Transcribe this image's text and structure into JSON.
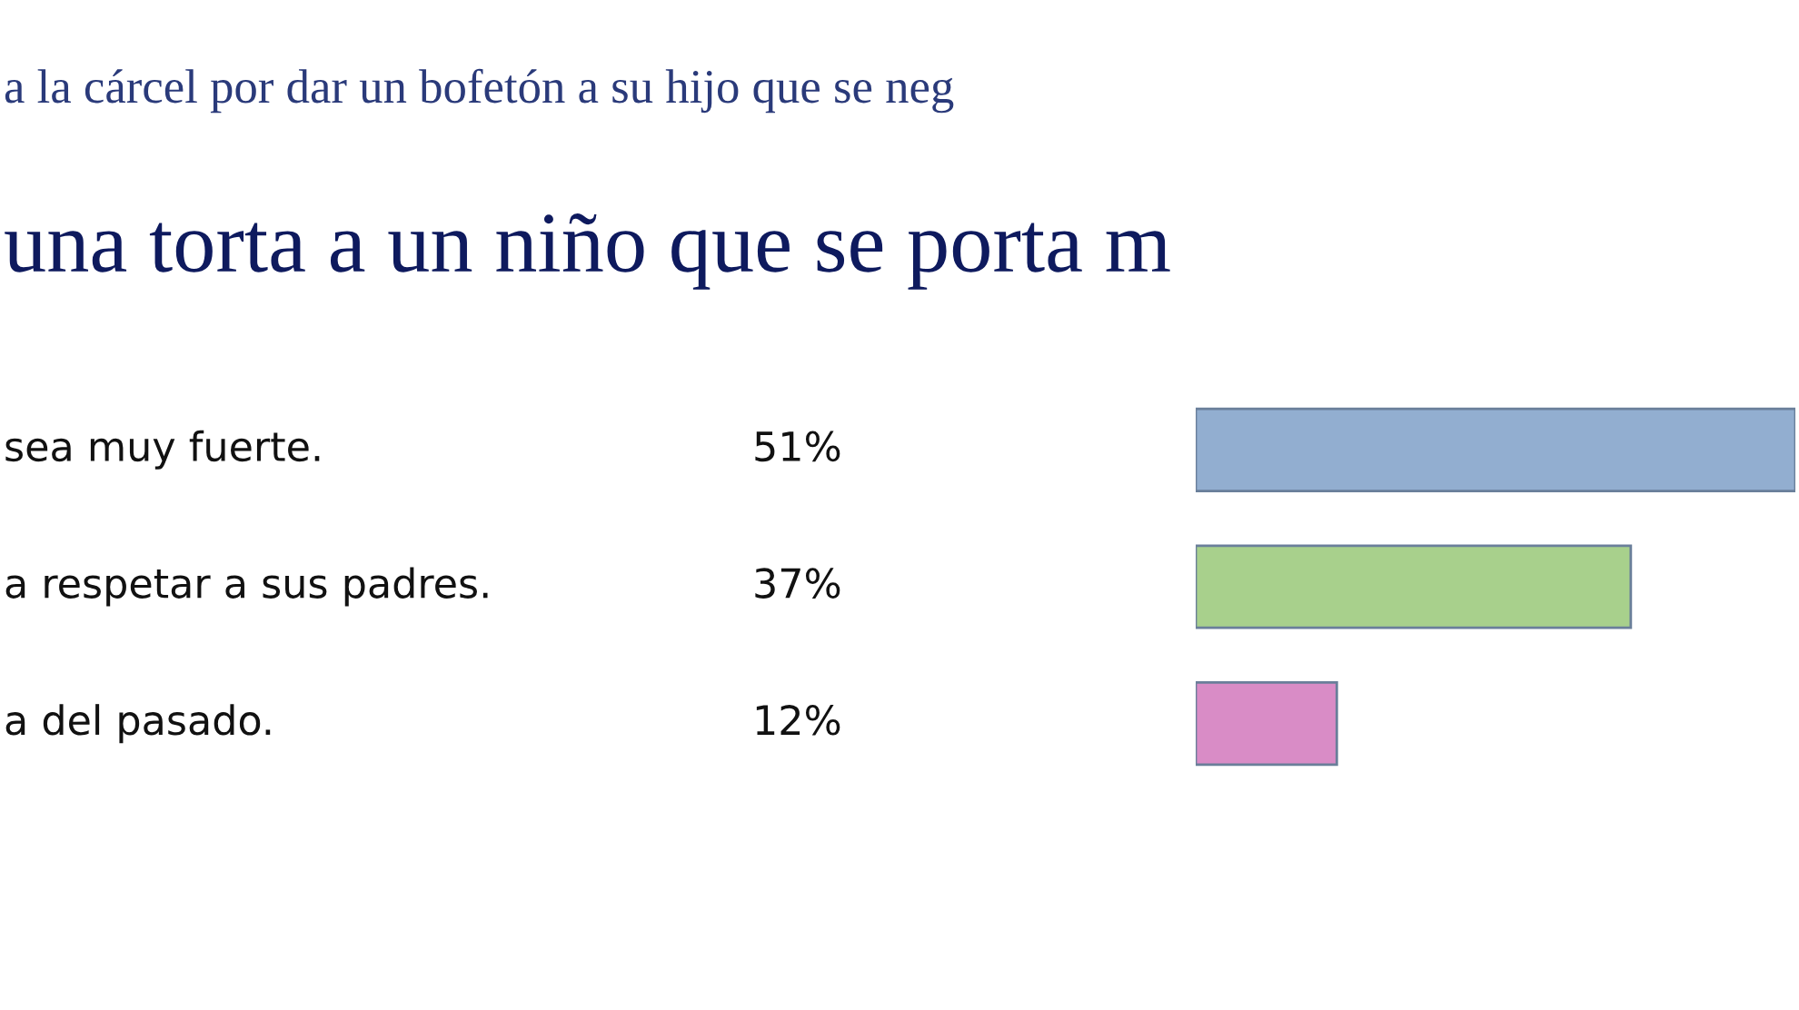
{
  "chart_data": {
    "type": "bar",
    "orientation": "horizontal",
    "subtitle": "a la cárcel por dar un bofetón a su hijo que se neg",
    "title": "una torta a un niño que se porta m",
    "categories": [
      "sea muy fuerte.",
      "a respetar a sus padres.",
      "a del pasado."
    ],
    "values": [
      51,
      37,
      12
    ],
    "value_labels": [
      "51%",
      "37%",
      "12%"
    ],
    "colors": [
      "#92aed0",
      "#a8d08c",
      "#d98cc6"
    ],
    "legend": false
  }
}
